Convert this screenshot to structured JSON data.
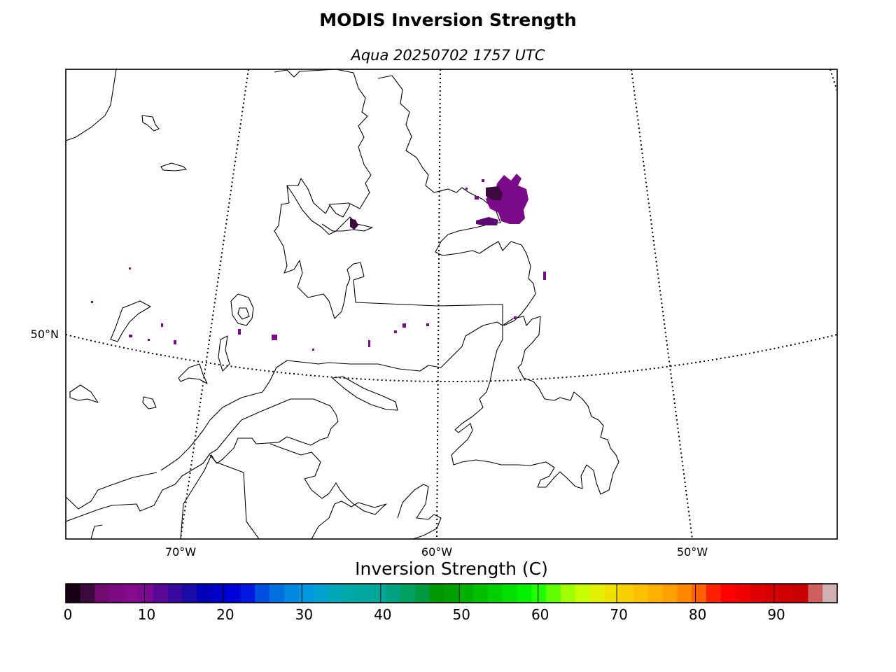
{
  "title": "MODIS Inversion Strength",
  "subtitle": "Aqua 20250702 1757 UTC",
  "map": {
    "lon_labels": [
      "70°W",
      "60°W",
      "50°W"
    ],
    "lat_labels": [
      "50°N"
    ],
    "feature_color": "#7a0a8a"
  },
  "colorbar": {
    "label": "Inversion Strength (C)",
    "ticks": [
      "0",
      "10",
      "20",
      "30",
      "40",
      "50",
      "60",
      "70",
      "80",
      "90"
    ],
    "colors": [
      "#160016",
      "#3d0a3d",
      "#720a72",
      "#7d0a82",
      "#860a8c",
      "#7a0a90",
      "#5a0a96",
      "#3a0aa0",
      "#1a0aa8",
      "#0000b8",
      "#0000c8",
      "#0000d8",
      "#0018e0",
      "#0050e0",
      "#0070e0",
      "#0088e0",
      "#0098e0",
      "#00a0d0",
      "#00a8b8",
      "#00a8a8",
      "#00a8a0",
      "#00a898",
      "#00a080",
      "#00a060",
      "#009840",
      "#009800",
      "#00a000",
      "#00b000",
      "#00c000",
      "#00d000",
      "#00e000",
      "#00f000",
      "#20ff00",
      "#60ff00",
      "#a0ff00",
      "#c8ff00",
      "#e0f000",
      "#f0e000",
      "#f8d000",
      "#ffc000",
      "#ffb000",
      "#ffa000",
      "#ff8800",
      "#ff6000",
      "#ff2000",
      "#ff0000",
      "#f00000",
      "#e00000",
      "#d80000",
      "#d00000",
      "#c80000",
      "#d06060",
      "#d0b0b0"
    ]
  }
}
